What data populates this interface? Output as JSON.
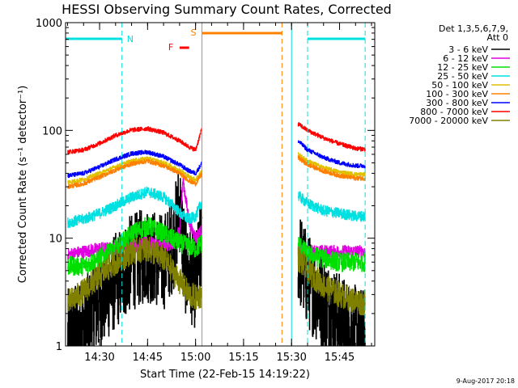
{
  "chart_data": {
    "type": "line",
    "title": "HESSI Observing Summary Count Rates, Corrected",
    "xlabel": "Start Time (22-Feb-15 14:19:22)",
    "ylabel": "Corrected Count Rate (s⁻¹ detector⁻¹)",
    "yscale": "log",
    "ylim": [
      1,
      1000
    ],
    "xlim": [
      "14:19:22",
      "15:56:00"
    ],
    "x_ticks": [
      "14:30",
      "14:45",
      "15:00",
      "15:15",
      "15:30",
      "15:45"
    ],
    "y_ticks": [
      "1",
      "10",
      "100",
      "1000"
    ],
    "grid": false,
    "legend": {
      "position": "right",
      "header": [
        "Det 1,3,5,6,7,9,",
        "Att 0"
      ]
    },
    "series": [
      {
        "name": "3 - 6 keV",
        "color": "#000000",
        "x": [
          "14:20",
          "14:25",
          "14:30",
          "14:35",
          "14:40",
          "14:45",
          "14:50",
          "14:53",
          "14:55",
          "14:57",
          "15:00",
          "15:02",
          "15:32",
          "15:35",
          "15:40",
          "15:45",
          "15:50",
          "15:53"
        ],
        "values": [
          1.2,
          1.5,
          2.5,
          4,
          6,
          7,
          6,
          9,
          20,
          5,
          4,
          9,
          7,
          4,
          2.5,
          1.7,
          1.3,
          1.2
        ]
      },
      {
        "name": "6 - 12 keV",
        "color": "#e000e0",
        "x": [
          "14:20",
          "14:25",
          "14:30",
          "14:35",
          "14:40",
          "14:45",
          "14:50",
          "14:53",
          "14:55",
          "14:56",
          "14:58",
          "15:00",
          "15:02",
          "15:32",
          "15:35",
          "15:40",
          "15:45",
          "15:50",
          "15:53"
        ],
        "values": [
          7,
          7.5,
          8,
          8,
          8.5,
          9,
          8.5,
          9,
          12,
          35,
          14,
          10,
          12,
          8,
          7.5,
          7.5,
          7.5,
          7.5,
          7.5
        ]
      },
      {
        "name": "12 - 25 keV",
        "color": "#00e000",
        "x": [
          "14:20",
          "14:25",
          "14:30",
          "14:35",
          "14:40",
          "14:45",
          "14:50",
          "14:55",
          "15:00",
          "15:02",
          "15:32",
          "15:35",
          "15:40",
          "15:45",
          "15:50",
          "15:53"
        ],
        "values": [
          5.5,
          5.5,
          6.5,
          8,
          11,
          13,
          11,
          9,
          8,
          9,
          9,
          7,
          6.5,
          6,
          6,
          6
        ]
      },
      {
        "name": "25 - 50 keV",
        "color": "#00e0e0",
        "x": [
          "14:20",
          "14:25",
          "14:30",
          "14:35",
          "14:40",
          "14:45",
          "14:50",
          "14:53",
          "14:56",
          "14:58",
          "15:00",
          "15:02",
          "15:32",
          "15:35",
          "15:40",
          "15:45",
          "15:50",
          "15:53"
        ],
        "values": [
          14,
          15,
          17,
          20,
          24,
          27,
          24,
          20,
          16,
          15,
          16,
          22,
          25,
          21,
          18,
          17,
          16,
          16
        ]
      },
      {
        "name": "50 - 100 keV",
        "color": "#e0c000",
        "x": [
          "14:20",
          "14:25",
          "14:30",
          "14:35",
          "14:40",
          "14:45",
          "14:50",
          "14:55",
          "14:58",
          "15:00",
          "15:02",
          "15:32",
          "15:35",
          "15:40",
          "15:45",
          "15:50",
          "15:53"
        ],
        "values": [
          33,
          35,
          40,
          46,
          52,
          55,
          50,
          43,
          37,
          35,
          42,
          60,
          52,
          45,
          41,
          39,
          39
        ]
      },
      {
        "name": "100 - 300 keV",
        "color": "#ff8000",
        "x": [
          "14:20",
          "14:25",
          "14:30",
          "14:35",
          "14:40",
          "14:45",
          "14:50",
          "14:55",
          "14:58",
          "15:00",
          "15:02",
          "15:32",
          "15:35",
          "15:40",
          "15:45",
          "15:50",
          "15:53"
        ],
        "values": [
          30,
          32,
          37,
          43,
          49,
          52,
          47,
          40,
          34,
          32,
          40,
          56,
          48,
          42,
          38,
          36,
          36
        ]
      },
      {
        "name": "300 - 800 keV",
        "color": "#0000ff",
        "x": [
          "14:20",
          "14:25",
          "14:30",
          "14:35",
          "14:40",
          "14:45",
          "14:50",
          "14:55",
          "14:58",
          "15:00",
          "15:02",
          "15:32",
          "15:35",
          "15:40",
          "15:45",
          "15:50",
          "15:53"
        ],
        "values": [
          38,
          40,
          46,
          54,
          61,
          63,
          57,
          48,
          42,
          40,
          50,
          80,
          66,
          56,
          50,
          47,
          47
        ]
      },
      {
        "name": "800 - 7000 keV",
        "color": "#ff0000",
        "x": [
          "14:20",
          "14:25",
          "14:30",
          "14:35",
          "14:40",
          "14:45",
          "14:50",
          "14:55",
          "14:58",
          "15:00",
          "15:02",
          "15:32",
          "15:35",
          "15:40",
          "15:45",
          "15:50",
          "15:53"
        ],
        "values": [
          63,
          66,
          76,
          90,
          101,
          104,
          95,
          80,
          70,
          66,
          105,
          115,
          100,
          85,
          75,
          68,
          67
        ]
      },
      {
        "name": "7000 - 20000 keV",
        "color": "#808000",
        "x": [
          "14:20",
          "14:25",
          "14:30",
          "14:35",
          "14:40",
          "14:45",
          "14:50",
          "14:55",
          "14:58",
          "15:00",
          "15:02",
          "15:32",
          "15:35",
          "15:40",
          "15:45",
          "15:50",
          "15:53"
        ],
        "values": [
          2.5,
          3.2,
          4.5,
          6,
          7.5,
          8,
          6.5,
          4,
          3,
          2.8,
          3,
          6.5,
          5,
          3.6,
          3,
          2.6,
          2.5
        ]
      }
    ],
    "annotations": {
      "N": {
        "label": "N",
        "color": "#00e0e0",
        "bar_before": [
          "14:19:22",
          "14:37"
        ],
        "bar_after": [
          "15:35",
          "15:53"
        ],
        "boundaries": [
          "14:37",
          "15:35",
          "15:53"
        ]
      },
      "F": {
        "label": "F",
        "color": "#ff0000",
        "bar": [
          "14:55",
          "14:58"
        ]
      },
      "S": {
        "label": "S",
        "color": "#ff8000",
        "bar": [
          "15:02",
          "15:27"
        ],
        "boundaries": [
          "15:02",
          "15:27"
        ]
      },
      "data_gap": [
        "15:02",
        "15:32"
      ],
      "orbit_boundary": "15:30"
    }
  },
  "colors": {
    "N": "#00e0e0",
    "F": "#ff0000",
    "S": "#ff8000"
  },
  "timestamp": "9-Aug-2017 20:18"
}
